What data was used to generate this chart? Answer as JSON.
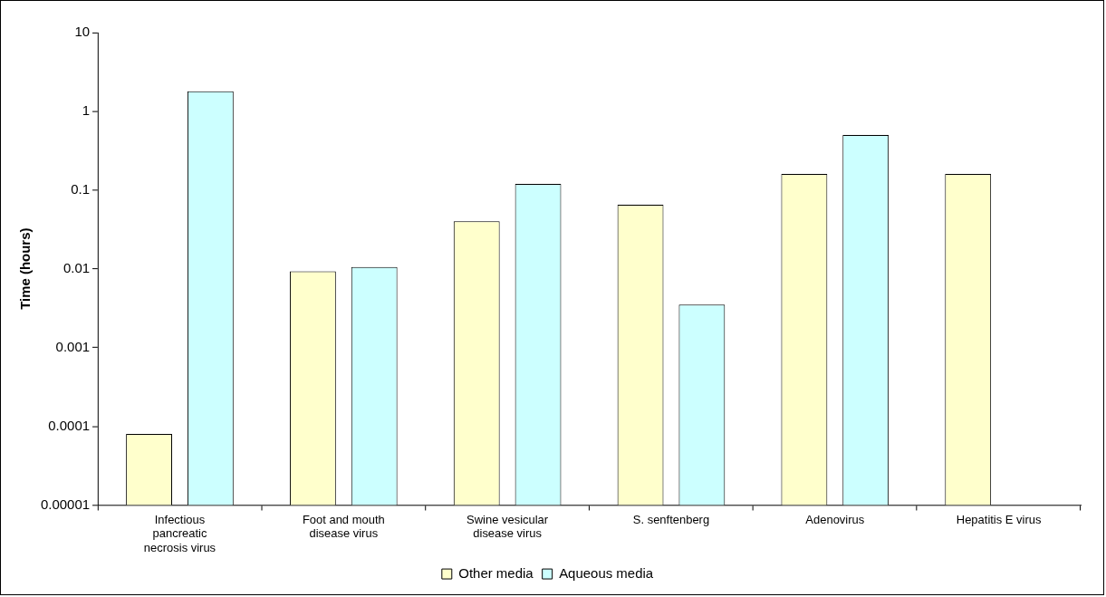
{
  "chart_data": {
    "type": "bar",
    "ylabel": "Time (hours)",
    "categories": [
      "Infectious pancreatic necrosis virus",
      "Foot and mouth disease virus",
      "Swine vesicular disease virus",
      "S. senftenberg",
      "Adenovirus",
      "Hepatitis E virus"
    ],
    "series": [
      {
        "name": "Other media",
        "color": "#ffffcc",
        "values": [
          8e-05,
          0.0093,
          0.04,
          0.065,
          0.16,
          0.16
        ]
      },
      {
        "name": "Aqueous media",
        "color": "#ccffff",
        "values": [
          1.8,
          0.0105,
          0.12,
          0.0035,
          0.5,
          null
        ]
      }
    ],
    "log": true,
    "ylim": [
      1e-05,
      10
    ],
    "yticks": [
      {
        "value": 1e-05,
        "label": "0.00001"
      },
      0.0001,
      0.001,
      0.01,
      0.1,
      1,
      10
    ],
    "grid": false,
    "legend": "bottom"
  }
}
